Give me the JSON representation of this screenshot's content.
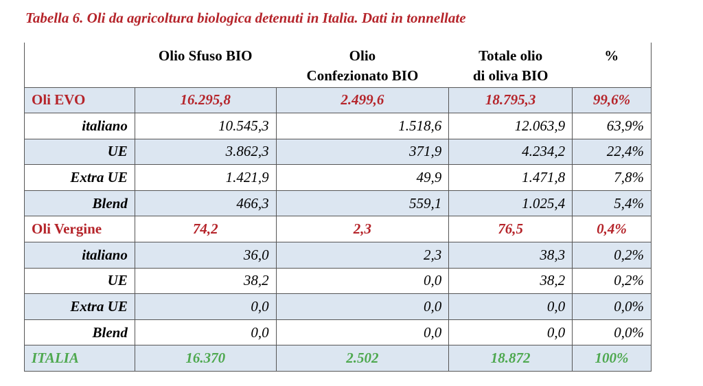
{
  "title": "Tabella 6. Oli da agricoltura biologica detenuti in Italia. Dati in tonnellate",
  "colors": {
    "category": "#b5242a",
    "total": "#4ea84f",
    "row_shade": "#dce6f1"
  },
  "header_lines": [
    [
      ""
    ],
    [
      "Olio Sfuso BIO"
    ],
    [
      "Olio",
      "Confezionato BIO"
    ],
    [
      "Totale olio",
      "di oliva BIO"
    ],
    [
      "%"
    ]
  ],
  "rows": [
    {
      "type": "cat",
      "shade": true,
      "cells": [
        "Oli EVO",
        "16.295,8",
        "2.499,6",
        "18.795,3",
        "99,6%"
      ]
    },
    {
      "type": "sub",
      "shade": false,
      "cells": [
        "italiano",
        "10.545,3",
        "1.518,6",
        "12.063,9",
        "63,9%"
      ]
    },
    {
      "type": "sub",
      "shade": true,
      "cells": [
        "UE",
        "3.862,3",
        "371,9",
        "4.234,2",
        "22,4%"
      ]
    },
    {
      "type": "sub",
      "shade": false,
      "cells": [
        "Extra UE",
        "1.421,9",
        "49,9",
        "1.471,8",
        "7,8%"
      ]
    },
    {
      "type": "sub",
      "shade": true,
      "cells": [
        "Blend",
        "466,3",
        "559,1",
        "1.025,4",
        "5,4%"
      ]
    },
    {
      "type": "cat",
      "shade": false,
      "cells": [
        "Oli Vergine",
        "74,2",
        "2,3",
        "76,5",
        "0,4%"
      ]
    },
    {
      "type": "sub",
      "shade": true,
      "cells": [
        "italiano",
        "36,0",
        "2,3",
        "38,3",
        "0,2%"
      ]
    },
    {
      "type": "sub",
      "shade": false,
      "cells": [
        "UE",
        "38,2",
        "0,0",
        "38,2",
        "0,2%"
      ]
    },
    {
      "type": "sub",
      "shade": true,
      "cells": [
        "Extra UE",
        "0,0",
        "0,0",
        "0,0",
        "0,0%"
      ]
    },
    {
      "type": "sub",
      "shade": false,
      "cells": [
        "Blend",
        "0,0",
        "0,0",
        "0,0",
        "0,0%"
      ]
    },
    {
      "type": "tot",
      "shade": true,
      "cells": [
        "ITALIA",
        "16.370",
        "2.502",
        "18.872",
        "100%"
      ]
    }
  ]
}
